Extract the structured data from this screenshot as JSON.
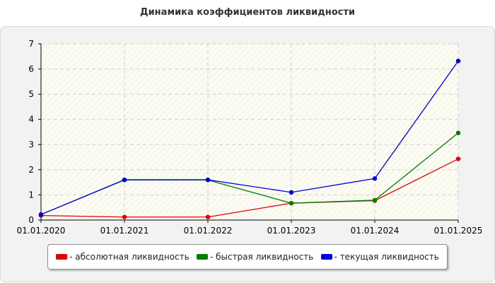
{
  "chart_data": {
    "type": "line",
    "title": "Динамика коэффициентов ликвидности",
    "xlabel": "",
    "ylabel": "",
    "categories": [
      "01.01.2020",
      "01.01.2021",
      "01.01.2022",
      "01.01.2023",
      "01.01.2024",
      "01.01.2025"
    ],
    "ylim": [
      0,
      7
    ],
    "yticks": [
      0,
      1,
      2,
      3,
      4,
      5,
      6,
      7
    ],
    "grid": true,
    "legend_position": "bottom",
    "series": [
      {
        "name": "- абсолютная ликвидность",
        "color": "#e00000",
        "values": [
          0.18,
          0.12,
          0.12,
          0.67,
          0.77,
          2.43
        ]
      },
      {
        "name": "- быстрая ликвидность",
        "color": "#008000",
        "values": [
          0.22,
          1.59,
          1.59,
          0.67,
          0.79,
          3.46
        ]
      },
      {
        "name": "- текущая ликвидность",
        "color": "#0000e0",
        "values": [
          0.22,
          1.6,
          1.6,
          1.1,
          1.65,
          6.32
        ]
      }
    ]
  }
}
